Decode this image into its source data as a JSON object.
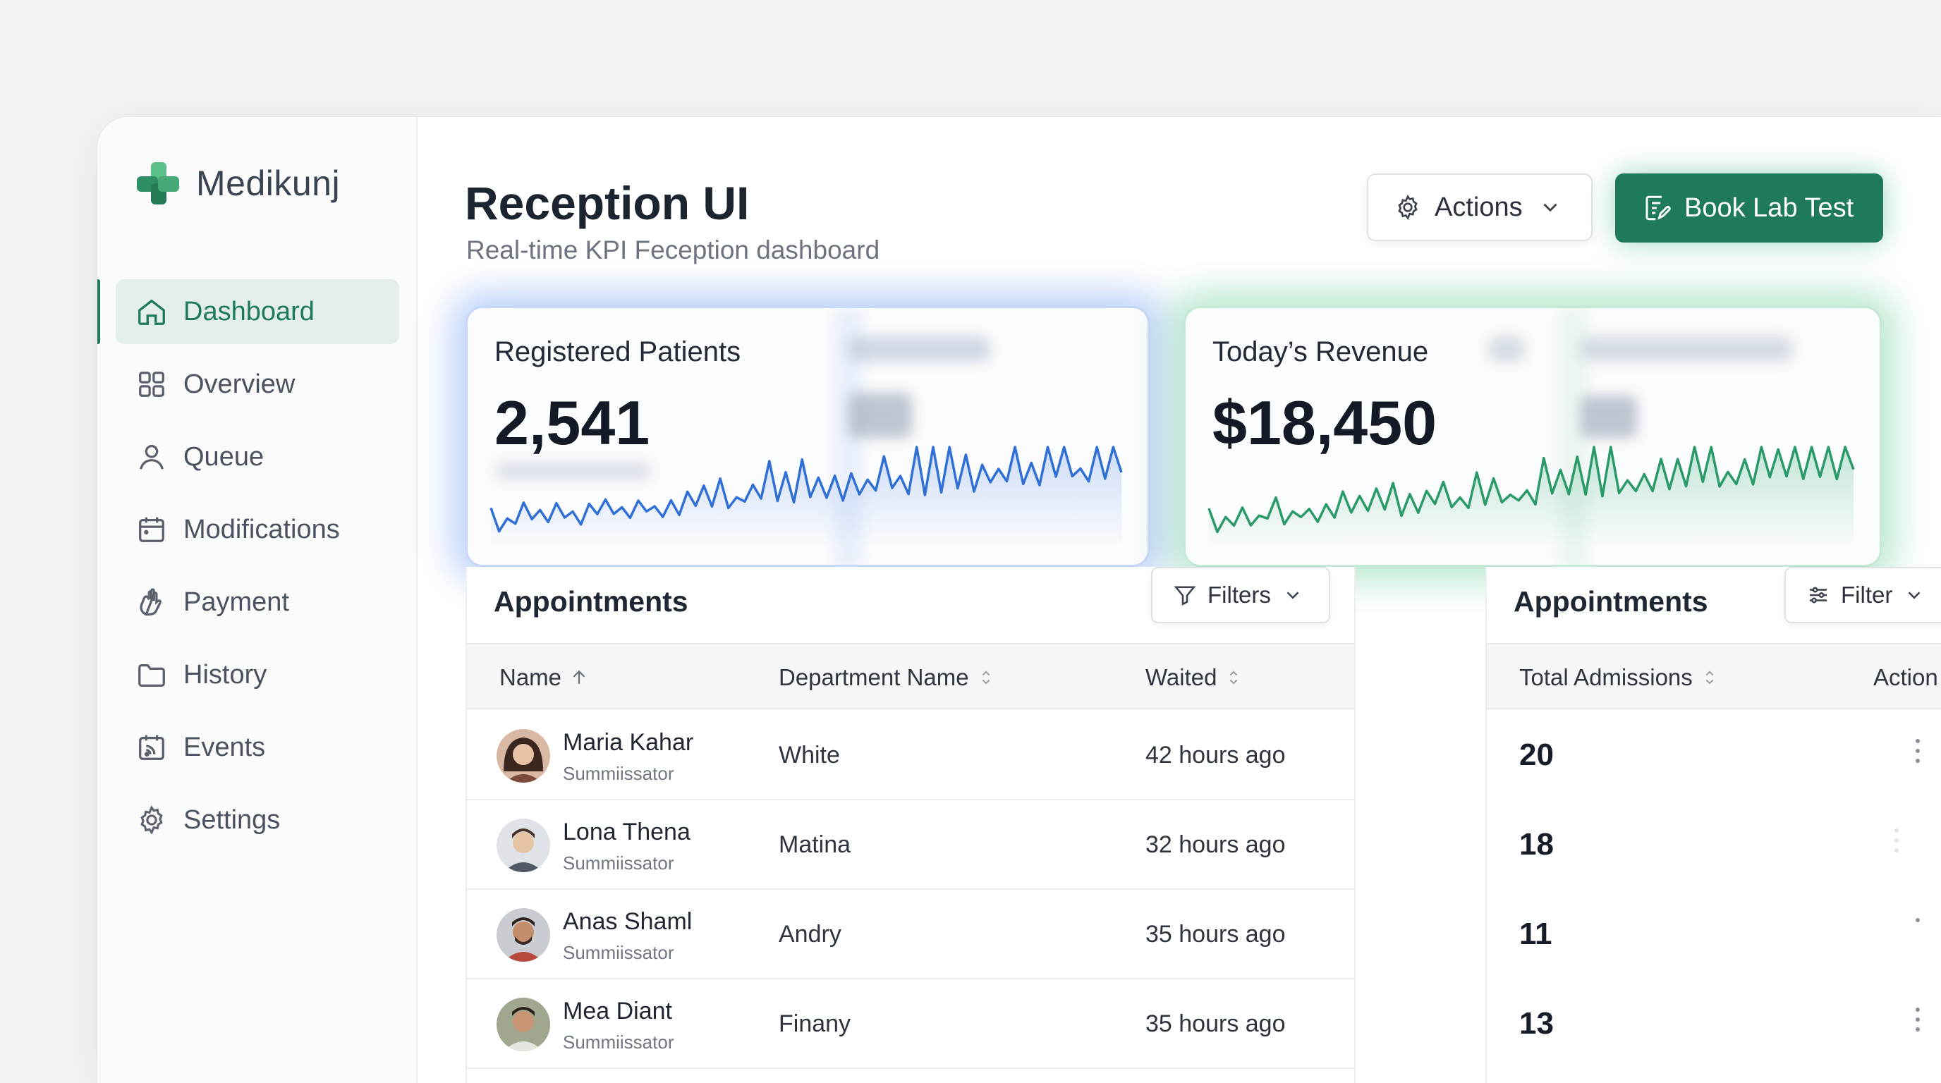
{
  "brand": {
    "name": "Medikunj"
  },
  "sidebar": {
    "items": [
      {
        "label": "Dashboard",
        "icon": "home-icon",
        "active": true
      },
      {
        "label": "Overview",
        "icon": "grid-icon"
      },
      {
        "label": "Queue",
        "icon": "user-icon"
      },
      {
        "label": "Modifications",
        "icon": "calendar-icon"
      },
      {
        "label": "Payment",
        "icon": "hand-icon"
      },
      {
        "label": "History",
        "icon": "folder-icon"
      },
      {
        "label": "Events",
        "icon": "events-icon"
      },
      {
        "label": "Settings",
        "icon": "gear-icon"
      }
    ]
  },
  "header": {
    "title": "Reception UI",
    "subtitle": "Real-time KPI Feception dashboard",
    "actions_label": "Actions",
    "book_label": "Book Lab Test"
  },
  "kpis": [
    {
      "label": "Registered Patients",
      "value": "2,541",
      "accent": "#2f6fd6"
    },
    {
      "label": "Today’s Revenue",
      "value": "$18,450",
      "accent": "#2a9a68"
    }
  ],
  "appointments": {
    "title": "Appointments",
    "filters_label": "Filters",
    "columns": [
      "Name",
      "Department Name",
      "Waited"
    ],
    "rows": [
      {
        "name": "Maria Kahar",
        "role": "Summiissator",
        "department": "White",
        "waited": "42 hours ago"
      },
      {
        "name": "Lona Thena",
        "role": "Summiissator",
        "department": "Matina",
        "waited": "32 hours ago"
      },
      {
        "name": "Anas Shaml",
        "role": "Summiissator",
        "department": "Andry",
        "waited": "35 hours ago"
      },
      {
        "name": "Mea Diant",
        "role": "Summiissator",
        "department": "Finany",
        "waited": "35 hours ago"
      }
    ]
  },
  "admissions": {
    "title": "Appointments",
    "filter_label": "Filter",
    "columns": [
      "Total Admissions",
      "Action"
    ],
    "values": [
      "20",
      "18",
      "11",
      "13"
    ]
  },
  "colors": {
    "brand_green": "#1f7a59",
    "accent_blue": "#2f6fd6",
    "accent_green": "#2a9a68"
  }
}
